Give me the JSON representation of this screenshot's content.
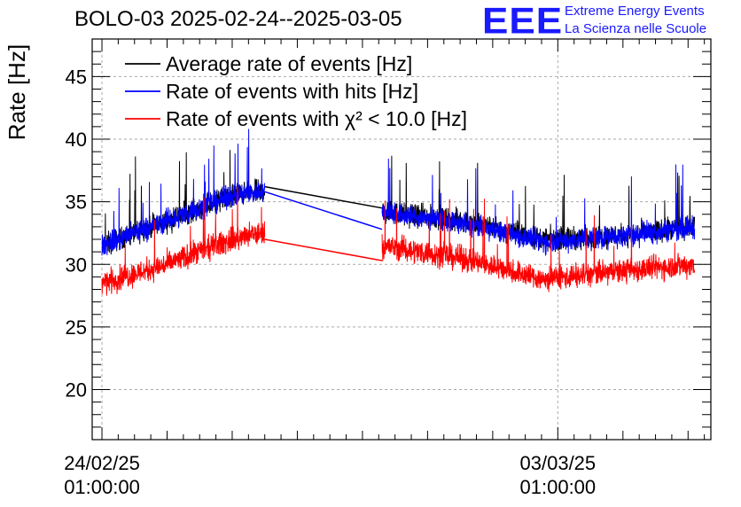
{
  "header": {
    "title": "BOLO-03 2025-02-24--2025-03-05",
    "logo": "EEE",
    "logo_line1": "Extreme Energy Events",
    "logo_line2": "La Scienza nelle Scuole"
  },
  "chart_data": {
    "type": "line",
    "title": "BOLO-03 2025-02-24--2025-03-05",
    "ylabel": "Rate [Hz]",
    "xlabel": "",
    "ylim": [
      16,
      48
    ],
    "xlim": [
      -0.15,
      9.35
    ],
    "yticks": [
      20,
      25,
      30,
      35,
      40,
      45
    ],
    "grid": true,
    "x_unit": "days since 24/02/25 01:00:00",
    "xticks": [
      {
        "x": 0,
        "line1": "24/02/25",
        "line2": "01:00:00"
      },
      {
        "x": 7,
        "line1": "03/03/25",
        "line2": "01:00:00"
      }
    ],
    "legend_position": "top-left",
    "series": [
      {
        "name": "Average rate of events [Hz]",
        "color": "#000000",
        "data_gap": [
          2.5,
          4.3
        ],
        "gap_bridge": [
          [
            2.5,
            36.2
          ],
          [
            4.3,
            34.5
          ]
        ],
        "points": [
          [
            0,
            31.5
          ],
          [
            1,
            33.5
          ],
          [
            2,
            35.5
          ],
          [
            2.5,
            35.9
          ],
          [
            4.3,
            34.2
          ],
          [
            5.5,
            33.5
          ],
          [
            6.8,
            32.0
          ],
          [
            8,
            32.3
          ],
          [
            9.1,
            33.0
          ]
        ]
      },
      {
        "name": "Rate of events with hits [Hz]",
        "color": "#0000ff",
        "data_gap": [
          2.5,
          4.3
        ],
        "gap_bridge": [
          [
            2.5,
            35.8
          ],
          [
            4.3,
            32.8
          ]
        ],
        "points": [
          [
            0,
            31.5
          ],
          [
            1,
            33.5
          ],
          [
            2,
            35.5
          ],
          [
            2.5,
            35.8
          ],
          [
            4.3,
            34.2
          ],
          [
            5.5,
            33.3
          ],
          [
            6.8,
            31.8
          ],
          [
            8,
            32.3
          ],
          [
            9.1,
            33.0
          ]
        ]
      },
      {
        "name": "Rate of events with χ² < 10.0 [Hz]",
        "color": "#ff0000",
        "data_gap": [
          2.5,
          4.3
        ],
        "gap_bridge": [
          [
            2.5,
            32.0
          ],
          [
            4.3,
            30.3
          ]
        ],
        "points": [
          [
            0,
            28.5
          ],
          [
            1,
            30.0
          ],
          [
            2,
            32.0
          ],
          [
            2.5,
            32.5
          ],
          [
            4.3,
            31.5
          ],
          [
            5.5,
            30.5
          ],
          [
            6.8,
            28.8
          ],
          [
            8,
            29.5
          ],
          [
            9.1,
            30.0
          ]
        ]
      }
    ]
  }
}
